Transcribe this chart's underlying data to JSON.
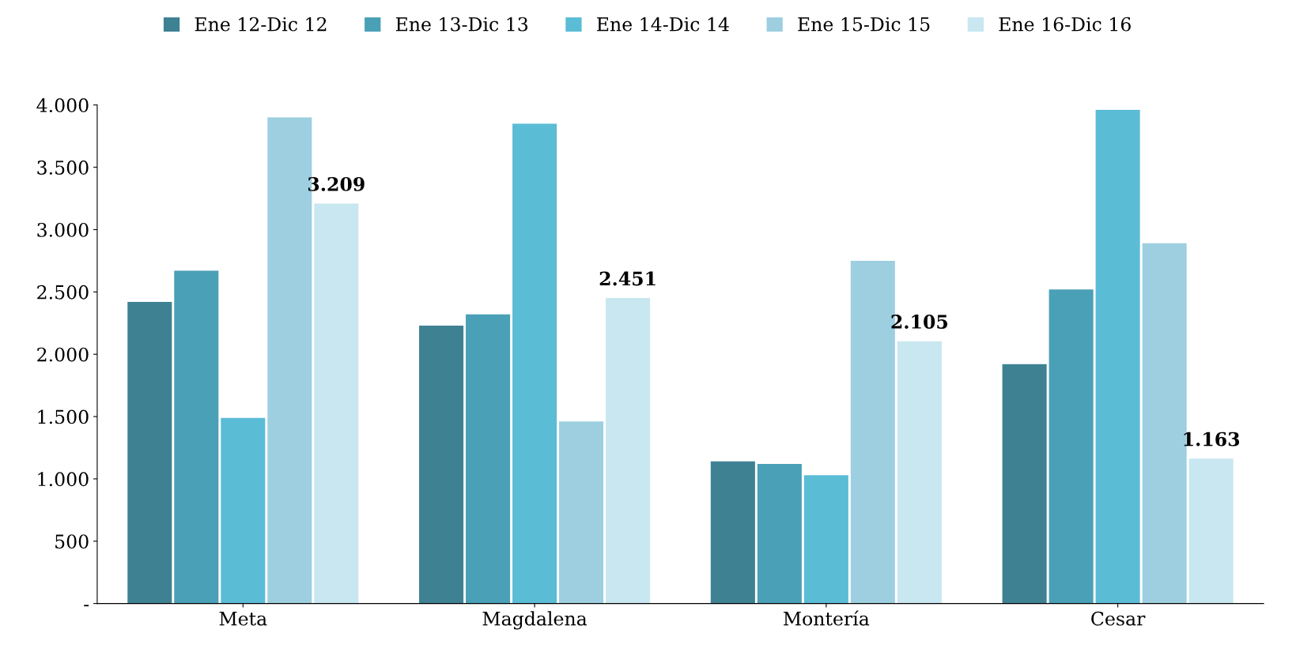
{
  "chart_data": {
    "type": "bar",
    "categories": [
      "Meta",
      "Magdalena",
      "Montería",
      "Cesar"
    ],
    "series": [
      {
        "name": "Ene 12-Dic 12",
        "color": "#3e8193",
        "values": [
          2420,
          2230,
          1140,
          1920
        ]
      },
      {
        "name": "Ene 13-Dic 13",
        "color": "#4aa0b6",
        "values": [
          2670,
          2320,
          1120,
          2520
        ]
      },
      {
        "name": "Ene 14-Dic 14",
        "color": "#5bbcd6",
        "values": [
          1490,
          3850,
          1030,
          3960
        ]
      },
      {
        "name": "Ene 15-Dic 15",
        "color": "#9dcfe0",
        "values": [
          3900,
          1460,
          2750,
          2890
        ]
      },
      {
        "name": "Ene 16-Dic 16",
        "color": "#c9e7f0",
        "values": [
          3209,
          2451,
          2105,
          1163
        ],
        "value_labels": [
          "3.209",
          "2.451",
          "2.105",
          "1.163"
        ]
      }
    ],
    "ylim": [
      0,
      4000
    ],
    "yticks": [
      {
        "value": 0,
        "label": "-"
      },
      {
        "value": 500,
        "label": "500"
      },
      {
        "value": 1000,
        "label": "1.000"
      },
      {
        "value": 1500,
        "label": "1.500"
      },
      {
        "value": 2000,
        "label": "2.000"
      },
      {
        "value": 2500,
        "label": "2.500"
      },
      {
        "value": 3000,
        "label": "3.000"
      },
      {
        "value": 3500,
        "label": "3.500"
      },
      {
        "value": 4000,
        "label": "4.000"
      }
    ],
    "grid": false,
    "legend": "top"
  }
}
